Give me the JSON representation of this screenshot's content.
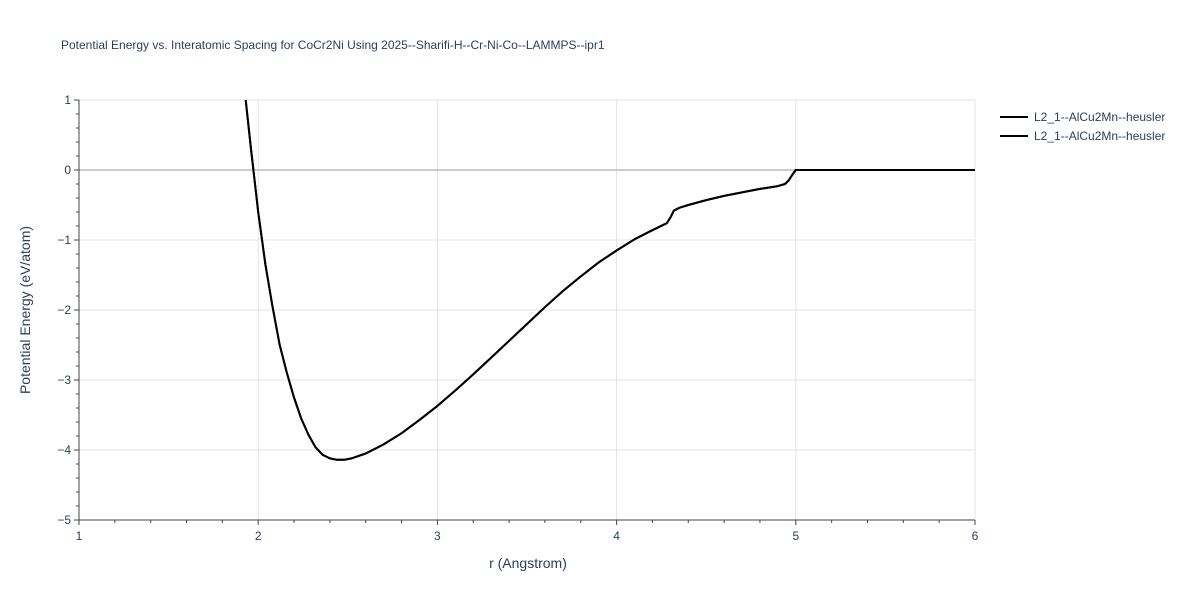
{
  "chart_data": {
    "type": "line",
    "title": "Potential Energy vs. Interatomic Spacing for CoCr2Ni Using 2025--Sharifi-H--Cr-Ni-Co--LAMMPS--ipr1",
    "xlabel": "r (Angstrom)",
    "ylabel": "Potential Energy (eV/atom)",
    "xlim": [
      1,
      6
    ],
    "ylim": [
      -5,
      1
    ],
    "xticks": [
      "1",
      "2",
      "3",
      "4",
      "5",
      "6"
    ],
    "yticks": [
      "−5",
      "−4",
      "−3",
      "−2",
      "−1",
      "0",
      "1"
    ],
    "grid": true,
    "legend_position": "top-right",
    "series": [
      {
        "name": "L2_1--AlCu2Mn--heusler",
        "color": "#000000",
        "x": [
          1.93,
          1.96,
          2.0,
          2.04,
          2.08,
          2.12,
          2.16,
          2.2,
          2.24,
          2.28,
          2.32,
          2.36,
          2.4,
          2.44,
          2.48,
          2.52,
          2.6,
          2.7,
          2.8,
          2.9,
          3.0,
          3.1,
          3.2,
          3.3,
          3.4,
          3.5,
          3.6,
          3.7,
          3.8,
          3.9,
          4.0,
          4.1,
          4.2,
          4.28,
          4.3,
          4.32,
          4.35,
          4.4,
          4.5,
          4.6,
          4.7,
          4.8,
          4.9,
          4.94,
          4.96,
          4.98,
          5.0,
          5.2,
          5.5,
          5.8,
          6.0
        ],
        "y": [
          1.0,
          0.3,
          -0.6,
          -1.35,
          -1.95,
          -2.5,
          -2.9,
          -3.25,
          -3.55,
          -3.78,
          -3.96,
          -4.07,
          -4.12,
          -4.14,
          -4.14,
          -4.12,
          -4.05,
          -3.92,
          -3.76,
          -3.57,
          -3.37,
          -3.15,
          -2.92,
          -2.68,
          -2.44,
          -2.2,
          -1.96,
          -1.73,
          -1.52,
          -1.32,
          -1.15,
          -0.99,
          -0.86,
          -0.76,
          -0.68,
          -0.58,
          -0.54,
          -0.5,
          -0.43,
          -0.37,
          -0.32,
          -0.27,
          -0.23,
          -0.2,
          -0.15,
          -0.07,
          0.0,
          0.0,
          0.0,
          0.0,
          0.0
        ]
      },
      {
        "name": "L2_1--AlCu2Mn--heusler",
        "color": "#000000",
        "x": [
          1.93,
          1.96,
          2.0,
          2.04,
          2.08,
          2.12,
          2.16,
          2.2,
          2.24,
          2.28,
          2.32,
          2.36,
          2.4,
          2.44,
          2.48,
          2.52,
          2.6,
          2.7,
          2.8,
          2.9,
          3.0,
          3.1,
          3.2,
          3.3,
          3.4,
          3.5,
          3.6,
          3.7,
          3.8,
          3.9,
          4.0,
          4.1,
          4.2,
          4.28,
          4.3,
          4.32,
          4.35,
          4.4,
          4.5,
          4.6,
          4.7,
          4.8,
          4.9,
          4.94,
          4.96,
          4.98,
          5.0,
          5.2,
          5.5,
          5.8,
          6.0
        ],
        "y": [
          1.0,
          0.3,
          -0.6,
          -1.35,
          -1.95,
          -2.5,
          -2.9,
          -3.25,
          -3.55,
          -3.78,
          -3.96,
          -4.07,
          -4.12,
          -4.14,
          -4.14,
          -4.12,
          -4.05,
          -3.92,
          -3.76,
          -3.57,
          -3.37,
          -3.15,
          -2.92,
          -2.68,
          -2.44,
          -2.2,
          -1.96,
          -1.73,
          -1.52,
          -1.32,
          -1.15,
          -0.99,
          -0.86,
          -0.76,
          -0.68,
          -0.58,
          -0.54,
          -0.5,
          -0.43,
          -0.37,
          -0.32,
          -0.27,
          -0.23,
          -0.2,
          -0.15,
          -0.07,
          0.0,
          0.0,
          0.0,
          0.0,
          0.0
        ]
      }
    ]
  }
}
